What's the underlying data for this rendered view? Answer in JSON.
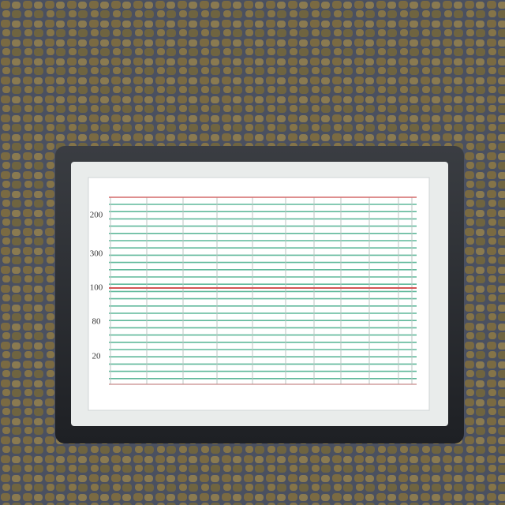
{
  "screen": {
    "axis_labels": [
      "200",
      "300",
      "100",
      "80",
      "20"
    ]
  }
}
